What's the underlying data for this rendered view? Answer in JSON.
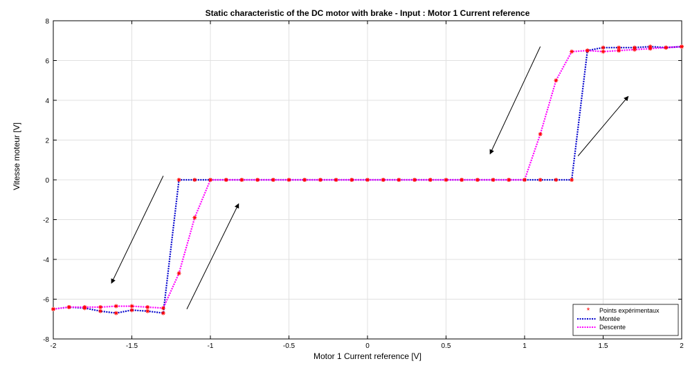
{
  "chart_data": {
    "type": "line",
    "title": "Static characteristic of the DC motor with brake - Input :  Motor 1 Current reference",
    "xlabel": "Motor 1 Current reference [V]",
    "ylabel": "Vitesse moteur [V]",
    "xlim": [
      -2,
      2
    ],
    "ylim": [
      -8,
      8
    ],
    "xticks": [
      -2,
      -1.5,
      -1,
      -0.5,
      0,
      0.5,
      1,
      1.5,
      2
    ],
    "xtick_labels": [
      "-2",
      "-1.5",
      "-1",
      "-0.5",
      "0",
      "0.5",
      "1",
      "1.5",
      "2"
    ],
    "yticks": [
      -8,
      -6,
      -4,
      -2,
      0,
      2,
      4,
      6,
      8
    ],
    "ytick_labels": [
      "-8",
      "-6",
      "-4",
      "-2",
      "0",
      "2",
      "4",
      "6",
      "8"
    ],
    "grid": true,
    "legend_position": "bottom-right",
    "legend": [
      "Points expérimentaux",
      "Montée",
      "Descente"
    ],
    "colors": {
      "points": "#ff0000",
      "montee": "#0000cc",
      "descente": "#ff00ff"
    },
    "series": [
      {
        "name": "Montée",
        "x": [
          -2.0,
          -1.9,
          -1.8,
          -1.7,
          -1.6,
          -1.5,
          -1.4,
          -1.3,
          -1.2,
          -1.1,
          -1.0,
          -0.9,
          -0.8,
          -0.7,
          -0.6,
          -0.5,
          -0.4,
          -0.3,
          -0.2,
          -0.1,
          0.0,
          0.1,
          0.2,
          0.3,
          0.4,
          0.5,
          0.6,
          0.7,
          0.8,
          0.9,
          1.0,
          1.1,
          1.2,
          1.3,
          1.4,
          1.5,
          1.6,
          1.7,
          1.8,
          1.9,
          2.0
        ],
        "y": [
          -6.5,
          -6.4,
          -6.45,
          -6.6,
          -6.7,
          -6.55,
          -6.6,
          -6.7,
          0,
          0,
          0,
          0,
          0,
          0,
          0,
          0,
          0,
          0,
          0,
          0,
          0,
          0,
          0,
          0,
          0,
          0,
          0,
          0,
          0,
          0,
          0,
          0,
          0,
          0,
          6.5,
          6.65,
          6.65,
          6.65,
          6.7,
          6.65,
          6.7
        ]
      },
      {
        "name": "Descente",
        "x": [
          -2.0,
          -1.9,
          -1.8,
          -1.7,
          -1.6,
          -1.5,
          -1.4,
          -1.3,
          -1.2,
          -1.1,
          -1.0,
          -0.9,
          -0.8,
          -0.7,
          -0.6,
          -0.5,
          -0.4,
          -0.3,
          -0.2,
          -0.1,
          0.0,
          0.1,
          0.2,
          0.3,
          0.4,
          0.5,
          0.6,
          0.7,
          0.8,
          0.9,
          1.0,
          1.1,
          1.2,
          1.3,
          1.4,
          1.5,
          1.6,
          1.7,
          1.8,
          1.9,
          2.0
        ],
        "y": [
          -6.5,
          -6.4,
          -6.4,
          -6.4,
          -6.35,
          -6.35,
          -6.4,
          -6.45,
          -4.7,
          -1.9,
          0,
          0,
          0,
          0,
          0,
          0,
          0,
          0,
          0,
          0,
          0,
          0,
          0,
          0,
          0,
          0,
          0,
          0,
          0,
          0,
          0,
          2.3,
          5.0,
          6.45,
          6.5,
          6.45,
          6.5,
          6.55,
          6.6,
          6.65,
          6.7
        ]
      }
    ],
    "annotations": [
      {
        "type": "arrow",
        "from": [
          -1.3,
          0.2
        ],
        "to": [
          -1.63,
          -5.2
        ]
      },
      {
        "type": "arrow",
        "from": [
          -1.15,
          -6.5
        ],
        "to": [
          -0.82,
          -1.2
        ]
      },
      {
        "type": "arrow",
        "from": [
          1.1,
          6.7
        ],
        "to": [
          0.78,
          1.3
        ]
      },
      {
        "type": "arrow",
        "from": [
          1.34,
          1.2
        ],
        "to": [
          1.66,
          4.2
        ]
      }
    ]
  }
}
